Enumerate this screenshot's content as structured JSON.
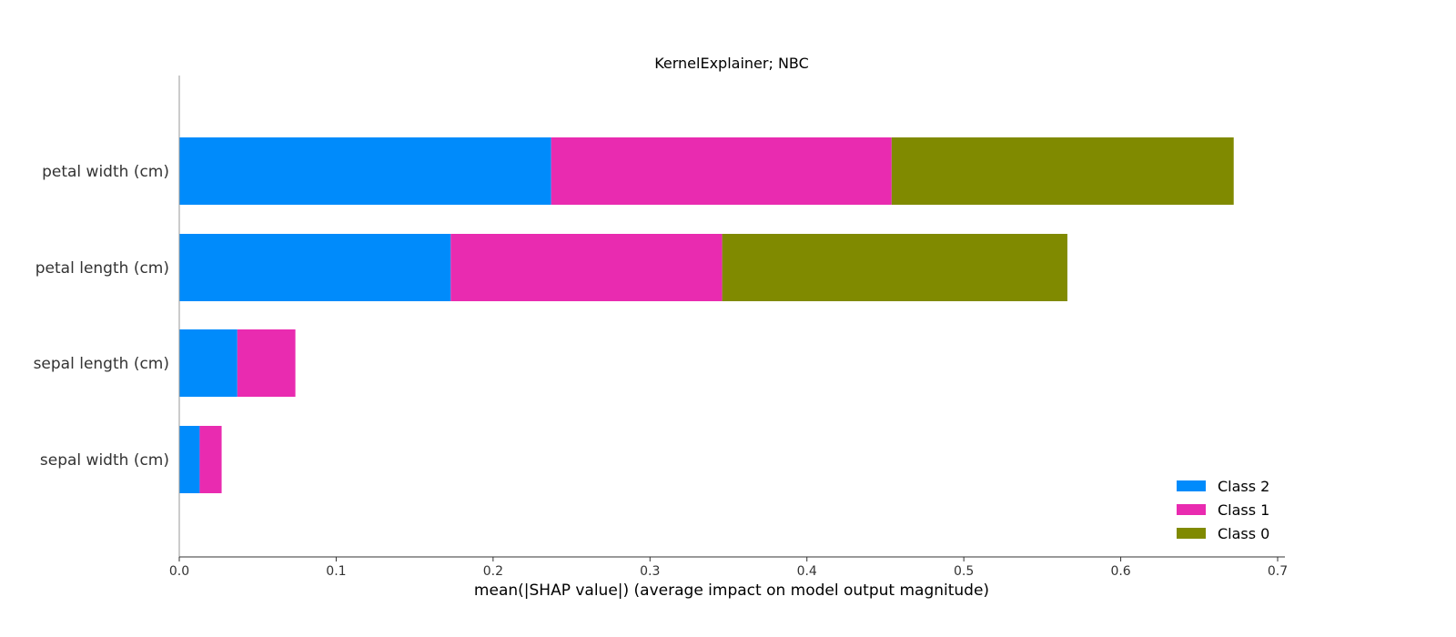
{
  "chart_data": {
    "type": "bar",
    "orientation": "horizontal",
    "stacked": true,
    "title": "KernelExplainer; NBC",
    "xlabel": "mean(|SHAP value|) (average impact on model output magnitude)",
    "ylabel": "",
    "xlim": [
      0.0,
      0.7
    ],
    "xticks": [
      "0.0",
      "0.1",
      "0.2",
      "0.3",
      "0.4",
      "0.5",
      "0.6",
      "0.7"
    ],
    "categories": [
      "petal width (cm)",
      "petal length (cm)",
      "sepal length (cm)",
      "sepal width (cm)"
    ],
    "series": [
      {
        "name": "Class 2",
        "color": "#008bfb",
        "values": [
          0.237,
          0.173,
          0.037,
          0.013
        ]
      },
      {
        "name": "Class 1",
        "color": "#e92bb0",
        "values": [
          0.217,
          0.173,
          0.037,
          0.014
        ]
      },
      {
        "name": "Class 0",
        "color": "#808a00",
        "values": [
          0.218,
          0.22,
          0.0,
          0.0
        ]
      }
    ],
    "legend": {
      "placement": "bottom-right",
      "order": [
        "Class 2",
        "Class 1",
        "Class 0"
      ]
    },
    "grid": false
  }
}
